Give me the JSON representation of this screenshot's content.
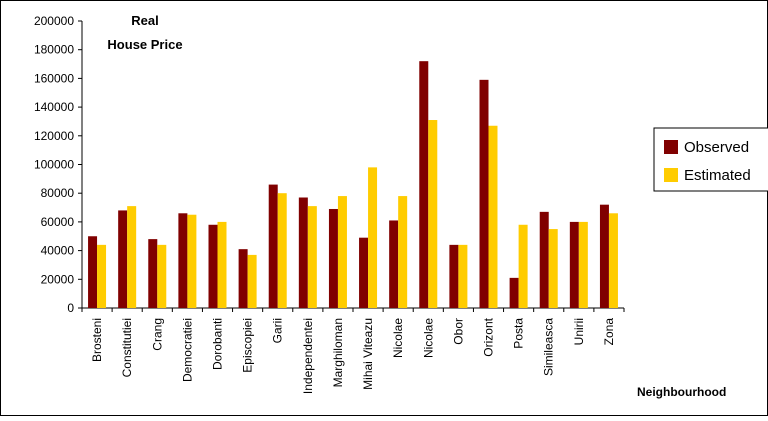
{
  "chart_data": {
    "type": "bar",
    "title_line1": "Real",
    "title_line2": "House Price",
    "xlabel": "Neighbourhood",
    "ylim": [
      0,
      200000
    ],
    "yticks": [
      "0",
      "20000",
      "40000",
      "60000",
      "80000",
      "100000",
      "120000",
      "140000",
      "160000",
      "180000",
      "200000"
    ],
    "categories": [
      "Brosteni",
      "Constitutiei",
      "Crang",
      "Democratiei",
      "Dorobanti",
      "Episcopiei",
      "Garii",
      "Independentei",
      "Marghiloman",
      "Mihai Viteazu",
      "Nicolae",
      "Nicolae",
      "Obor",
      "Orizont",
      "Posta",
      "Simileasca",
      "Unirii",
      "Zona"
    ],
    "series": [
      {
        "name": "Observed",
        "color": "#800000",
        "values": [
          50000,
          68000,
          48000,
          66000,
          58000,
          41000,
          86000,
          77000,
          69000,
          49000,
          61000,
          172000,
          44000,
          159000,
          21000,
          67000,
          60000,
          72000
        ]
      },
      {
        "name": "Estimated",
        "color": "#ffcc00",
        "values": [
          44000,
          71000,
          44000,
          65000,
          60000,
          37000,
          80000,
          71000,
          78000,
          98000,
          78000,
          131000,
          44000,
          127000,
          58000,
          55000,
          60000,
          66000
        ]
      }
    ],
    "legend_position": "right",
    "grid": false
  }
}
